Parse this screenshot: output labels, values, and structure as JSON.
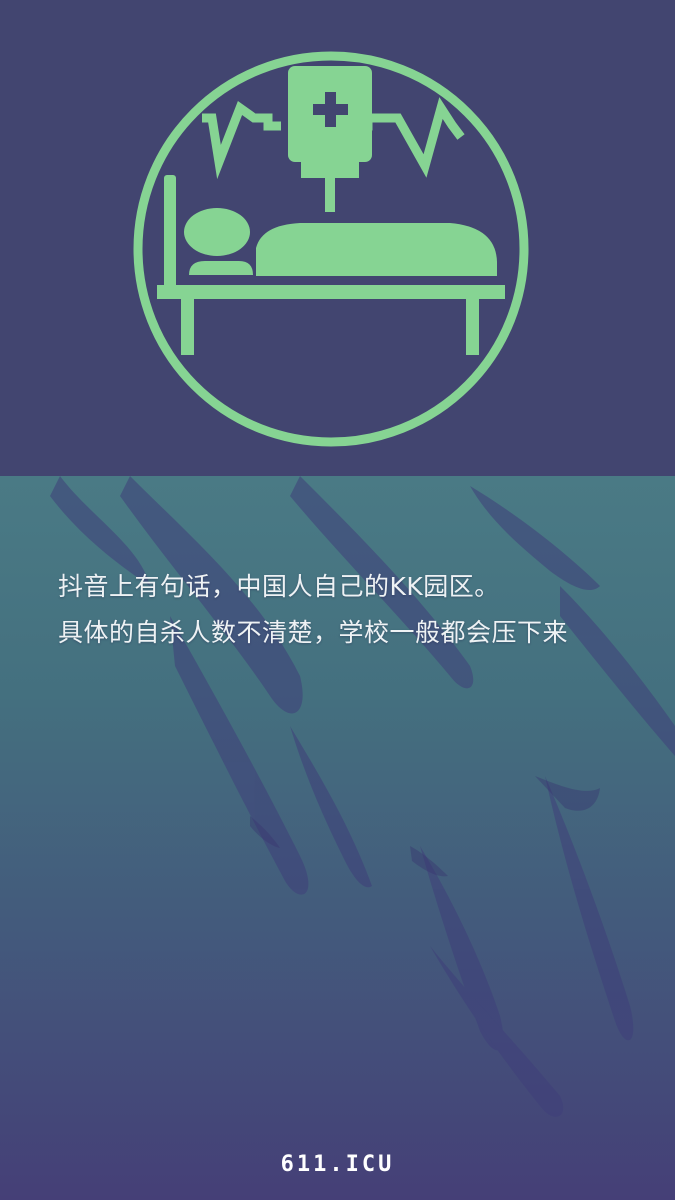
{
  "icon": {
    "name": "hospital-bed-iv-icon",
    "accent": "#86d493",
    "background": "#424570"
  },
  "message": {
    "line1": "抖音上有句话，中国人自己的KK园区。",
    "line2": "具体的自杀人数不清楚，学校一般都会压下来"
  },
  "footer": {
    "brand": "611.ICU"
  }
}
